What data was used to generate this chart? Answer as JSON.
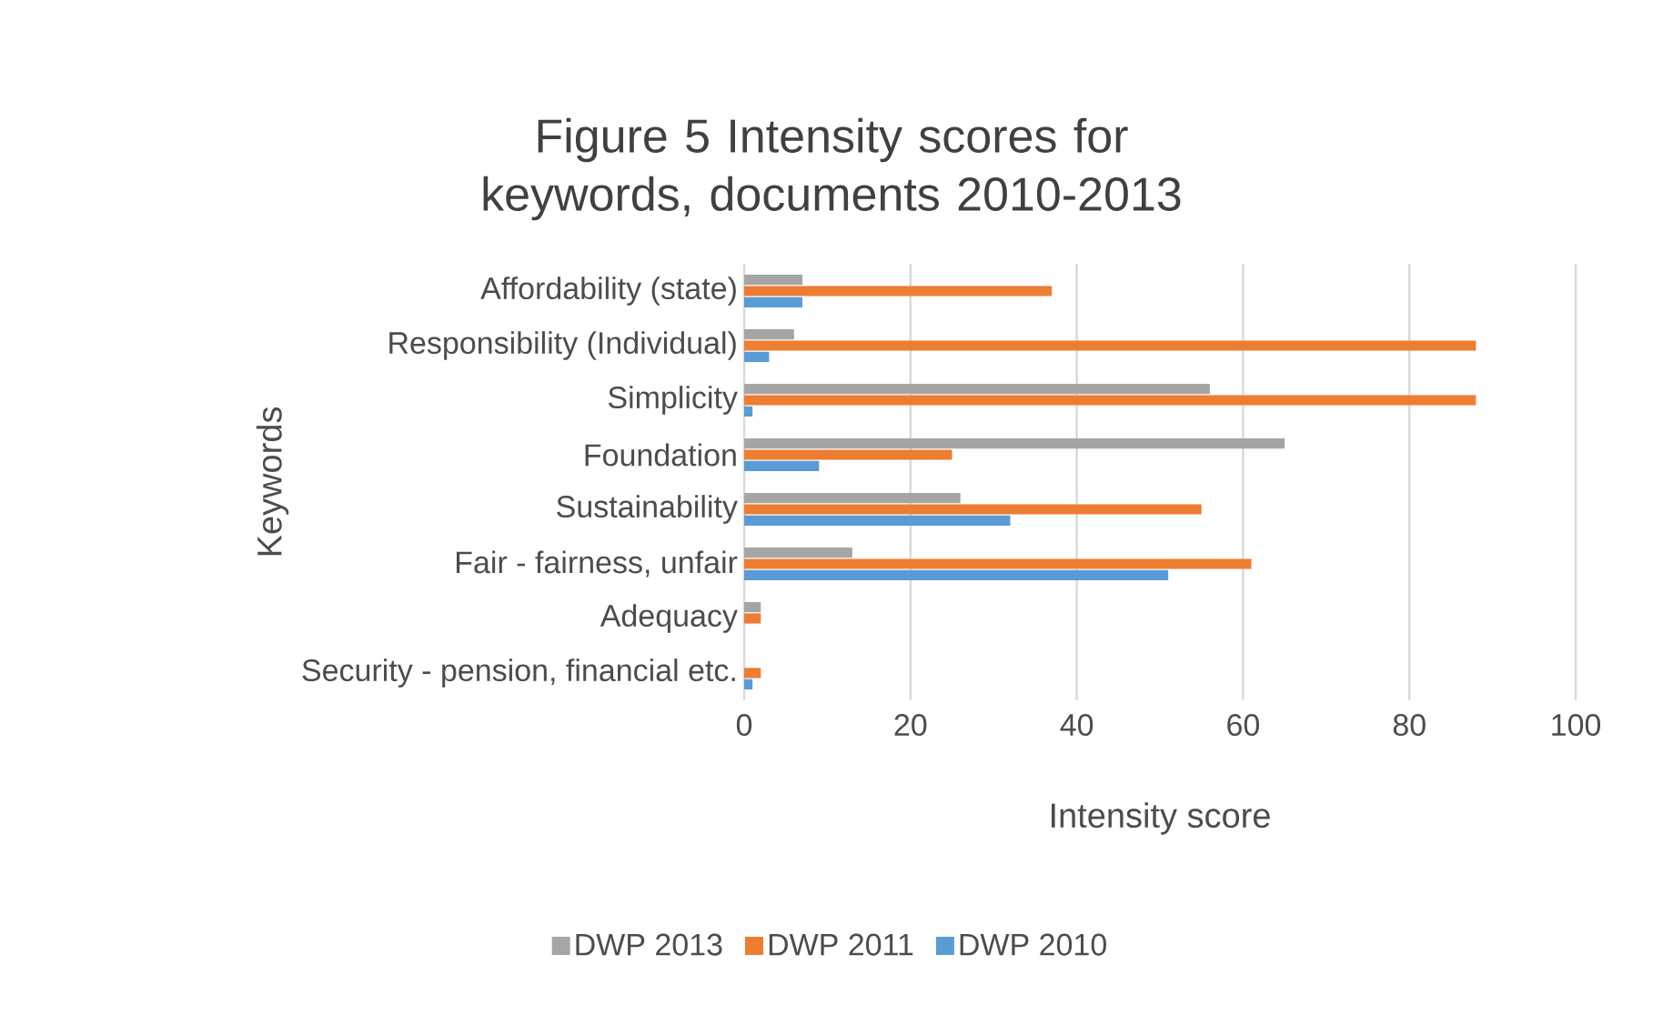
{
  "chart_data": {
    "type": "bar",
    "orientation": "horizontal",
    "title": "Figure 5 Intensity scores for keywords, documents 2010-2013",
    "xlabel": "Intensity score",
    "ylabel": "Keywords",
    "categories": [
      "Affordability (state)",
      "Responsibility (Individual)",
      "Simplicity",
      "Foundation",
      "Sustainability",
      "Fair - fairness, unfair",
      "Adequacy",
      "Security - pension, financial etc."
    ],
    "series": [
      {
        "name": "DWP 2013",
        "color": "#a5a5a5",
        "values": [
          7,
          6,
          56,
          65,
          26,
          13,
          2,
          0
        ]
      },
      {
        "name": "DWP 2011",
        "color": "#ed7d31",
        "values": [
          37,
          88,
          88,
          25,
          55,
          61,
          2,
          2
        ]
      },
      {
        "name": "DWP 2010",
        "color": "#5b9bd5",
        "values": [
          7,
          3,
          1,
          9,
          32,
          51,
          0,
          1
        ]
      }
    ],
    "xlim": [
      0,
      100
    ],
    "xticks": [
      0,
      20,
      40,
      60,
      80,
      100
    ],
    "grid": "x",
    "legend": "bottom"
  }
}
